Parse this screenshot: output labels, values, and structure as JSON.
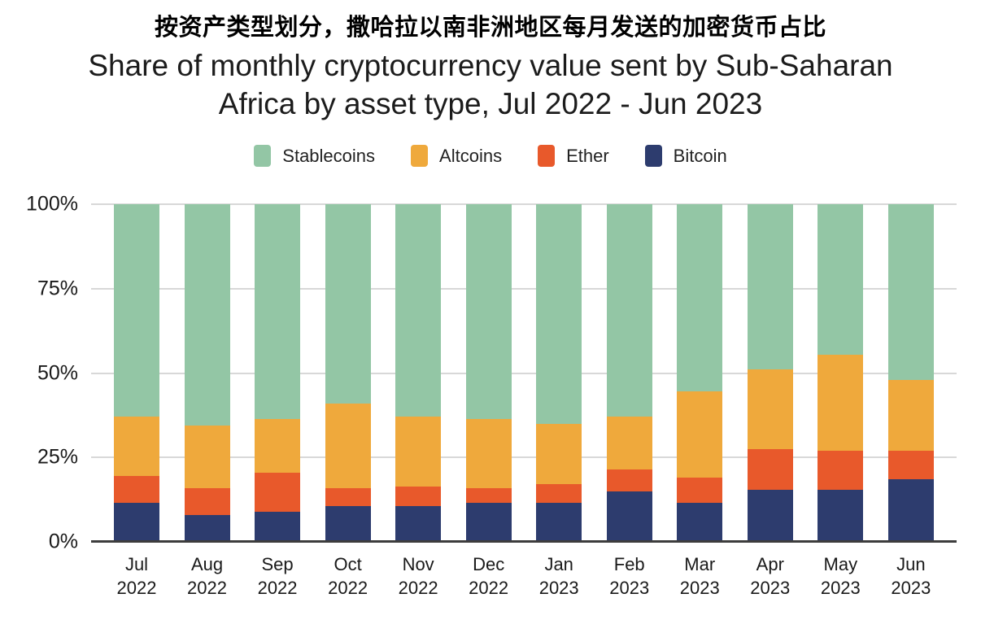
{
  "titles": {
    "zh": "按资产类型划分，撒哈拉以南非洲地区每月发送的加密货币占比",
    "en_line1": "Share of monthly cryptocurrency value sent by Sub-Saharan",
    "en_line2": "Africa by asset type, Jul 2022 - Jun 2023"
  },
  "legend": [
    {
      "label": "Stablecoins",
      "color": "#93C6A5"
    },
    {
      "label": "Altcoins",
      "color": "#EFA93C"
    },
    {
      "label": "Ether",
      "color": "#E8592B"
    },
    {
      "label": "Bitcoin",
      "color": "#2D3C6E"
    }
  ],
  "chart_data": {
    "type": "bar",
    "stacked": true,
    "percent_stacked": true,
    "title": "Share of monthly cryptocurrency value sent by Sub-Saharan Africa by asset type, Jul 2022 - Jun 2023",
    "xlabel": "",
    "ylabel": "",
    "ylim": [
      0,
      100
    ],
    "grid": "horizontal",
    "legend_position": "top",
    "unit": "%",
    "categories": [
      {
        "month": "Jul",
        "year": "2022"
      },
      {
        "month": "Aug",
        "year": "2022"
      },
      {
        "month": "Sep",
        "year": "2022"
      },
      {
        "month": "Oct",
        "year": "2022"
      },
      {
        "month": "Nov",
        "year": "2022"
      },
      {
        "month": "Dec",
        "year": "2022"
      },
      {
        "month": "Jan",
        "year": "2023"
      },
      {
        "month": "Feb",
        "year": "2023"
      },
      {
        "month": "Mar",
        "year": "2023"
      },
      {
        "month": "Apr",
        "year": "2023"
      },
      {
        "month": "May",
        "year": "2023"
      },
      {
        "month": "Jun",
        "year": "2023"
      }
    ],
    "series": [
      {
        "name": "Stablecoins",
        "color": "#93C6A5",
        "values": [
          63,
          65.5,
          63.5,
          59,
          63,
          63.5,
          65,
          63,
          55.5,
          49,
          44.5,
          52
        ]
      },
      {
        "name": "Altcoins",
        "color": "#EFA93C",
        "values": [
          17.5,
          18.5,
          16,
          25,
          20.5,
          20.5,
          18,
          15.5,
          25.5,
          23.5,
          28.5,
          21
        ]
      },
      {
        "name": "Ether",
        "color": "#E8592B",
        "values": [
          8,
          8,
          11.5,
          5.5,
          6,
          4.5,
          5.5,
          6.5,
          7.5,
          12,
          11.5,
          8.5
        ]
      },
      {
        "name": "Bitcoin",
        "color": "#2D3C6E",
        "values": [
          11.5,
          8,
          9,
          10.5,
          10.5,
          11.5,
          11.5,
          15,
          11.5,
          15.5,
          15.5,
          18.5
        ]
      }
    ],
    "y_ticks": [
      {
        "label": "100%",
        "value": 100
      },
      {
        "label": "75%",
        "value": 75
      },
      {
        "label": "50%",
        "value": 50
      },
      {
        "label": "25%",
        "value": 25
      },
      {
        "label": "0%",
        "value": 0
      }
    ]
  }
}
